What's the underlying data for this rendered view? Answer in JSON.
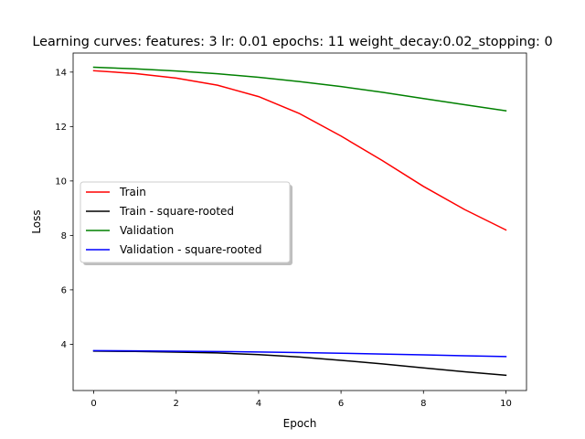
{
  "chart_data": {
    "type": "line",
    "title": "Learning curves: features: 3 lr: 0.01 epochs: 11 weight_decay:0.02_stopping: 0",
    "xlabel": "Epoch",
    "ylabel": "Loss",
    "xlim": [
      -0.5,
      10.5
    ],
    "ylim": [
      2.3,
      14.7
    ],
    "xticks": [
      0,
      2,
      4,
      6,
      8,
      10
    ],
    "yticks": [
      4,
      6,
      8,
      10,
      12,
      14
    ],
    "grid": false,
    "legend_position": "center-left",
    "x": [
      0,
      1,
      2,
      3,
      4,
      5,
      6,
      7,
      8,
      9,
      10
    ],
    "series": [
      {
        "name": "Train",
        "color": "#ff0000",
        "values": [
          14.05,
          13.95,
          13.78,
          13.52,
          13.1,
          12.47,
          11.65,
          10.75,
          9.8,
          8.95,
          8.2
        ]
      },
      {
        "name": "Train - square-rooted",
        "color": "#000000",
        "values": [
          3.75,
          3.735,
          3.71,
          3.68,
          3.62,
          3.53,
          3.41,
          3.28,
          3.13,
          2.99,
          2.86
        ]
      },
      {
        "name": "Validation",
        "color": "#008000",
        "values": [
          14.18,
          14.12,
          14.04,
          13.94,
          13.81,
          13.65,
          13.47,
          13.26,
          13.03,
          12.8,
          12.58
        ]
      },
      {
        "name": "Validation - square-rooted",
        "color": "#0000ff",
        "values": [
          3.765,
          3.758,
          3.747,
          3.734,
          3.716,
          3.695,
          3.67,
          3.64,
          3.61,
          3.578,
          3.547
        ]
      }
    ]
  }
}
